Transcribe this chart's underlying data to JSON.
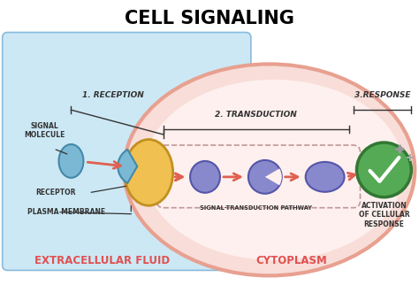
{
  "title": "CELL SIGNALING",
  "title_fontsize": 15,
  "title_fontweight": "bold",
  "bg_color": "#ffffff",
  "extracellular_color": "#cce8f4",
  "cell_border_color": "#e8a090",
  "cell_fill_color": "#f8ddd8",
  "cell_inner_color": "#fdf0ee",
  "signal_molecule_color": "#7ab8d4",
  "signal_molecule_edge": "#4488aa",
  "receptor_color": "#f0c050",
  "receptor_edge": "#c09020",
  "receptor_small_color": "#7ab8d4",
  "receptor_small_edge": "#4488aa",
  "pathway_mol_color": "#8888cc",
  "pathway_mol_edge": "#5555aa",
  "arrow_color": "#e06050",
  "label_color_red": "#e05050",
  "extracellular_label": "EXTRACELLULAR FLUID",
  "cytoplasm_label": "CYTOPLASM",
  "reception_label": "1. RECEPTION",
  "transduction_label": "2. TRANSDUCTION",
  "response_label": "3.RESPONSE",
  "signal_molecule_label": "SIGNAL\nMOLECULE",
  "receptor_label": "RECEPTOR",
  "plasma_membrane_label": "PLASMA MEMBRANE",
  "pathway_label": "SIGNAL-TRANSDUCTION PATHWAY",
  "activation_label": "ACTIVATION\nOF CELLULAR\nRESPONSE",
  "checkmark_color": "#55aa55",
  "checkmark_edge": "#337733",
  "line_color": "#333333",
  "tube_edge_color": "#c09898"
}
